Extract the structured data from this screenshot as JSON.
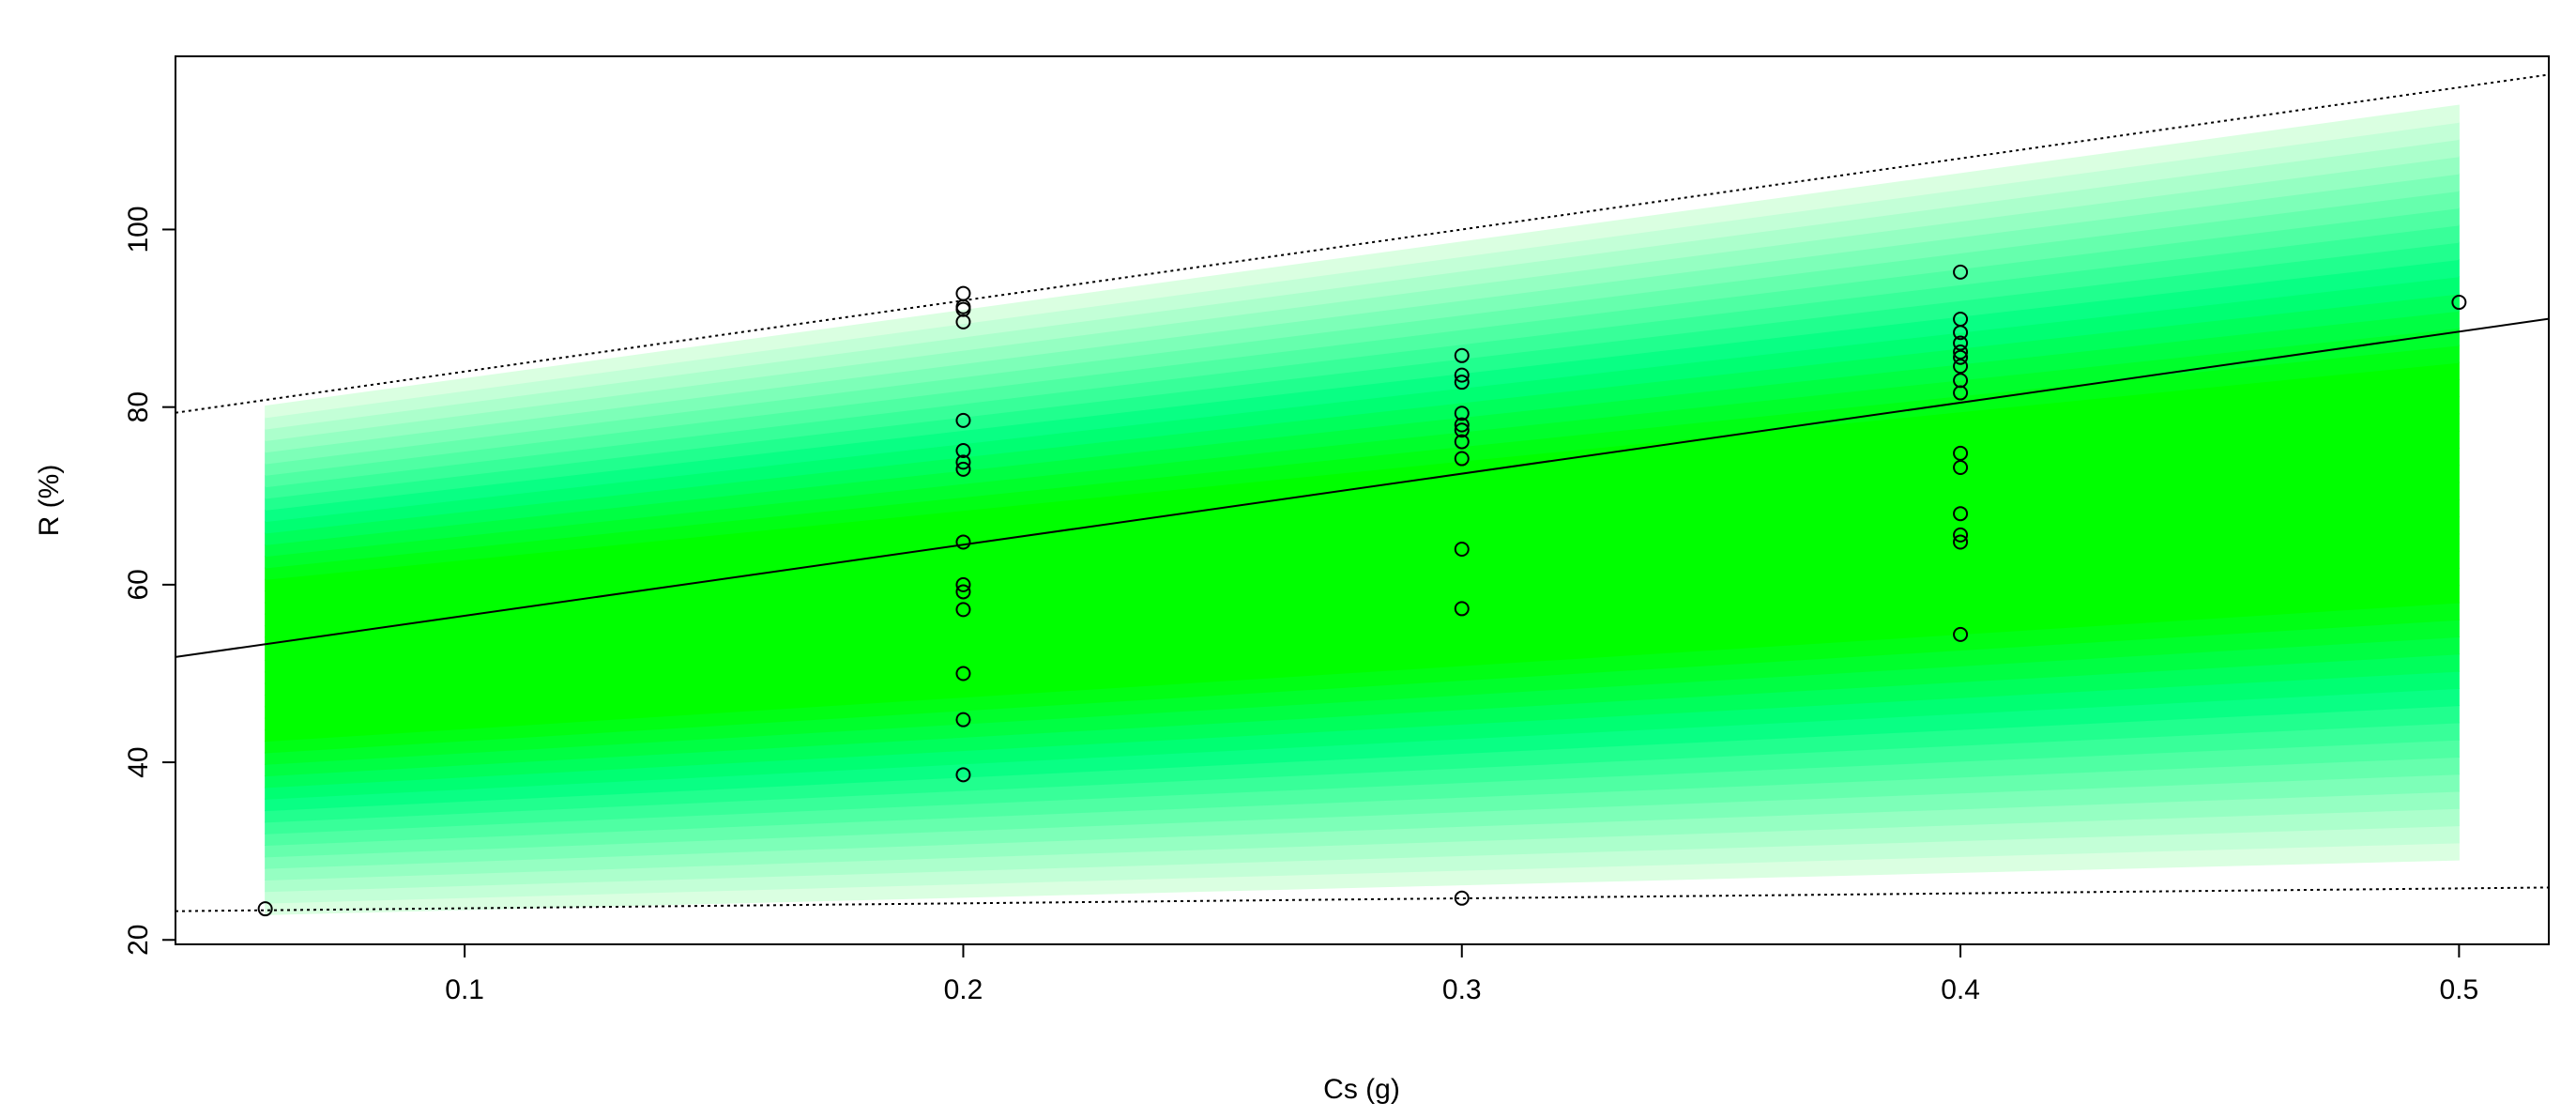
{
  "chart_data": {
    "type": "scatter",
    "title": "",
    "xlabel": "Cs (g)",
    "ylabel": "R (%)",
    "xlim": [
      0.042,
      0.518
    ],
    "ylim": [
      19.5,
      119.5
    ],
    "x_ticks": [
      0.1,
      0.2,
      0.3,
      0.4,
      0.5
    ],
    "x_tick_labels": [
      "0.1",
      "0.2",
      "0.3",
      "0.4",
      "0.5"
    ],
    "y_ticks": [
      20,
      40,
      60,
      80,
      100
    ],
    "y_tick_labels": [
      "20",
      "40",
      "60",
      "80",
      "100"
    ],
    "grid": false,
    "legend": "none",
    "fit_line": {
      "intercept": 48.5,
      "slope": 80
    },
    "prediction_upper": {
      "intercept": 76.0,
      "slope": 80
    },
    "prediction_lower": {
      "intercept": 23.0,
      "slope": 5.6
    },
    "band": {
      "x_range": [
        0.06,
        0.5
      ],
      "upper": {
        "intercept": 75.5,
        "slope": 77
      },
      "lower": {
        "intercept": 22.0,
        "slope": 14
      }
    },
    "colors": {
      "band_core": "#00ff00",
      "band_mid": "#00ff80",
      "band_edge": "#e6ffe6",
      "points": "#000000",
      "lines": "#000000"
    },
    "points": [
      {
        "x": 0.06,
        "y": 23.5
      },
      {
        "x": 0.2,
        "y": 92.8
      },
      {
        "x": 0.2,
        "y": 91.3
      },
      {
        "x": 0.2,
        "y": 91.0
      },
      {
        "x": 0.2,
        "y": 89.6
      },
      {
        "x": 0.2,
        "y": 78.5
      },
      {
        "x": 0.2,
        "y": 75.1
      },
      {
        "x": 0.2,
        "y": 73.8
      },
      {
        "x": 0.2,
        "y": 73.0
      },
      {
        "x": 0.2,
        "y": 64.8
      },
      {
        "x": 0.2,
        "y": 60.0
      },
      {
        "x": 0.2,
        "y": 59.2
      },
      {
        "x": 0.2,
        "y": 57.2
      },
      {
        "x": 0.2,
        "y": 50.0
      },
      {
        "x": 0.2,
        "y": 44.8
      },
      {
        "x": 0.2,
        "y": 38.6
      },
      {
        "x": 0.3,
        "y": 85.8
      },
      {
        "x": 0.3,
        "y": 83.6
      },
      {
        "x": 0.3,
        "y": 82.8
      },
      {
        "x": 0.3,
        "y": 79.3
      },
      {
        "x": 0.3,
        "y": 78.0
      },
      {
        "x": 0.3,
        "y": 77.4
      },
      {
        "x": 0.3,
        "y": 76.1
      },
      {
        "x": 0.3,
        "y": 74.2
      },
      {
        "x": 0.3,
        "y": 64.0
      },
      {
        "x": 0.3,
        "y": 57.3
      },
      {
        "x": 0.3,
        "y": 24.7
      },
      {
        "x": 0.4,
        "y": 95.2
      },
      {
        "x": 0.4,
        "y": 89.9
      },
      {
        "x": 0.4,
        "y": 88.4
      },
      {
        "x": 0.4,
        "y": 87.2
      },
      {
        "x": 0.4,
        "y": 86.2
      },
      {
        "x": 0.4,
        "y": 85.6
      },
      {
        "x": 0.4,
        "y": 84.6
      },
      {
        "x": 0.4,
        "y": 83.0
      },
      {
        "x": 0.4,
        "y": 81.6
      },
      {
        "x": 0.4,
        "y": 74.8
      },
      {
        "x": 0.4,
        "y": 73.2
      },
      {
        "x": 0.4,
        "y": 68.0
      },
      {
        "x": 0.4,
        "y": 65.6
      },
      {
        "x": 0.4,
        "y": 64.8
      },
      {
        "x": 0.4,
        "y": 54.4
      },
      {
        "x": 0.5,
        "y": 91.8
      }
    ]
  }
}
